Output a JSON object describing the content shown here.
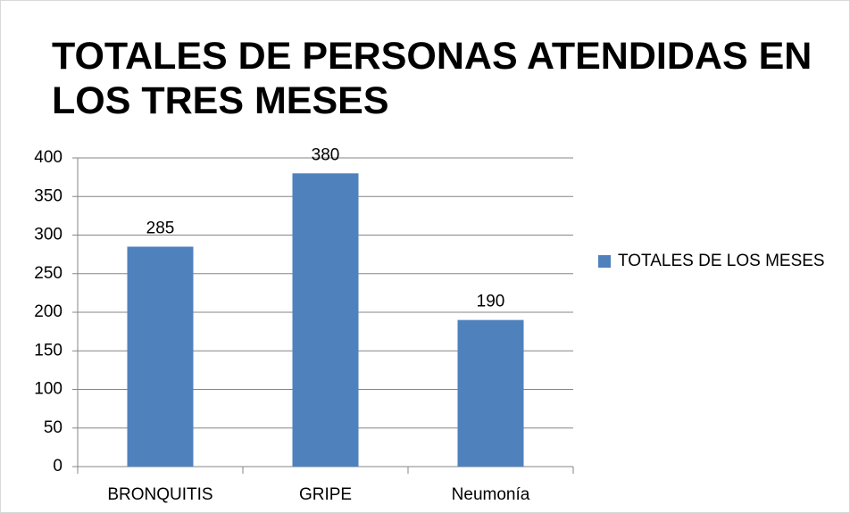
{
  "chart_data": {
    "type": "bar",
    "title": "TOTALES DE PERSONAS ATENDIDAS EN LOS TRES MESES",
    "categories": [
      "BRONQUITIS",
      "GRIPE",
      "Neumonía"
    ],
    "series": [
      {
        "name": "TOTALES DE LOS MESES",
        "color": "#4f81bd",
        "values": [
          285,
          380,
          190
        ]
      }
    ],
    "ylim": [
      0,
      400
    ],
    "yticks": [
      0,
      50,
      100,
      150,
      200,
      250,
      300,
      350,
      400
    ],
    "grid": true,
    "legend": "right"
  }
}
